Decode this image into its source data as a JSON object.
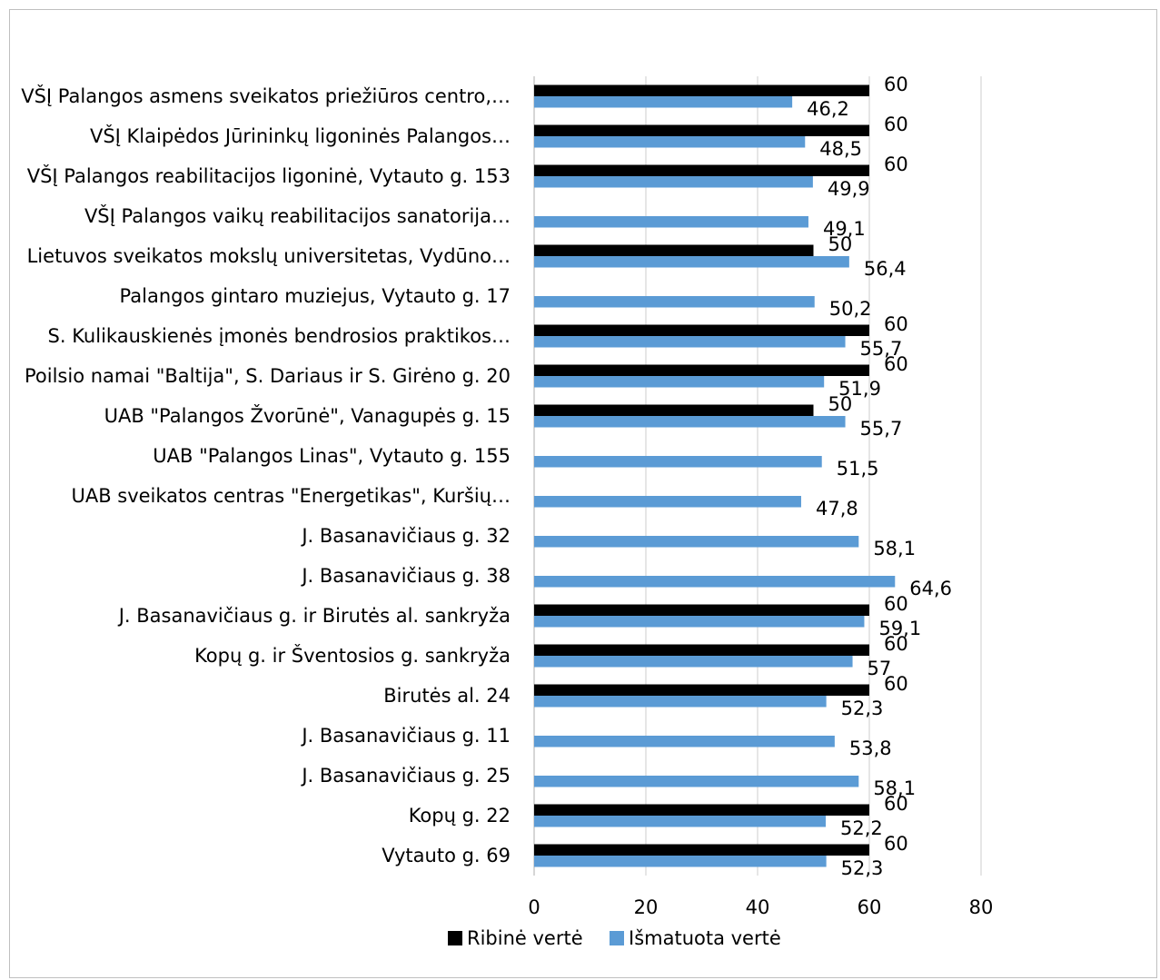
{
  "chart_data": {
    "type": "bar",
    "orientation": "horizontal",
    "categories": [
      "VŠĮ Palangos asmens sveikatos priežiūros centro,…",
      "VŠĮ Klaipėdos Jūrininkų ligoninės Palangos…",
      "VŠĮ Palangos reabilitacijos ligoninė, Vytauto g. 153",
      "VŠĮ Palangos vaikų reabilitacijos sanatorija…",
      "Lietuvos sveikatos mokslų universitetas, Vydūno…",
      "Palangos gintaro muziejus, Vytauto g. 17",
      "S. Kulikauskienės įmonės bendrosios praktikos…",
      "Poilsio namai \"Baltija\", S. Dariaus ir S. Girėno g. 20",
      "UAB \"Palangos Žvorūnė\", Vanagupės g. 15",
      "UAB \"Palangos Linas\", Vytauto g. 155",
      "UAB sveikatos centras \"Energetikas\", Kuršių…",
      "J. Basanavičiaus g. 32",
      "J. Basanavičiaus g. 38",
      "J. Basanavičiaus g. ir Birutės al. sankryža",
      "Kopų g. ir Šventosios g. sankryža",
      "Birutės al. 24",
      "J. Basanavičiaus g. 11",
      "J. Basanavičiaus g. 25",
      "Kopų g. 22",
      "Vytauto g. 69"
    ],
    "series": [
      {
        "name": "Ribinė vertė",
        "color": "#000000",
        "values": [
          60,
          60,
          60,
          null,
          50,
          null,
          60,
          60,
          50,
          null,
          null,
          null,
          null,
          60,
          60,
          60,
          null,
          null,
          60,
          60
        ],
        "labels": [
          "60",
          "60",
          "60",
          "",
          "50",
          "",
          "60",
          "60",
          "50",
          "",
          "",
          "",
          "",
          "60",
          "60",
          "60",
          "",
          "",
          "60",
          "60"
        ]
      },
      {
        "name": "Išmatuota vertė",
        "color": "#5b9bd5",
        "values": [
          46.2,
          48.5,
          49.9,
          49.1,
          56.4,
          50.2,
          55.7,
          51.9,
          55.7,
          51.5,
          47.8,
          58.1,
          64.6,
          59.1,
          57,
          52.3,
          53.8,
          58.1,
          52.2,
          52.3
        ],
        "labels": [
          "46,2",
          "48,5",
          "49,9",
          "49,1",
          "56,4",
          "50,2",
          "55,7",
          "51,9",
          "55,7",
          "51,5",
          "47,8",
          "58,1",
          "64,6",
          "59,1",
          "57",
          "52,3",
          "53,8",
          "58,1",
          "52,2",
          "52,3"
        ]
      }
    ],
    "xlim": [
      0,
      80
    ],
    "xticks": [
      "0",
      "20",
      "40",
      "60",
      "80"
    ],
    "grid": true,
    "legend_position": "bottom",
    "title": "",
    "xlabel": "",
    "ylabel": ""
  }
}
